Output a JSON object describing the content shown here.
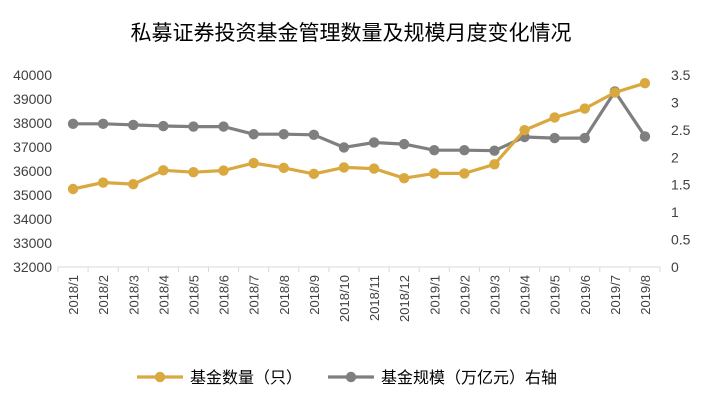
{
  "chart_data": {
    "type": "line",
    "title": "私募证券投资基金管理数量及规模月度变化情况",
    "categories": [
      "2018/1",
      "2018/2",
      "2018/3",
      "2018/4",
      "2018/5",
      "2018/6",
      "2018/7",
      "2018/8",
      "2018/9",
      "2018/10",
      "2018/11",
      "2018/12",
      "2019/1",
      "2019/2",
      "2019/3",
      "2019/4",
      "2019/5",
      "2019/6",
      "2019/7",
      "2019/8"
    ],
    "y_left": {
      "ylim": [
        32000,
        40000
      ],
      "ticks": [
        "32000",
        "33000",
        "34000",
        "35000",
        "36000",
        "37000",
        "38000",
        "39000",
        "40000"
      ]
    },
    "y_right": {
      "ylim": [
        0,
        3.5
      ],
      "ticks": [
        "0",
        "0.5",
        "1",
        "1.5",
        "2",
        "2.5",
        "3",
        "3.5"
      ]
    },
    "series": [
      {
        "name": "基金数量（只）",
        "axis": "left",
        "color": "#D9A83F",
        "values": [
          35250,
          35520,
          35450,
          36030,
          35950,
          36020,
          36330,
          36130,
          35880,
          36150,
          36100,
          35700,
          35900,
          35900,
          36280,
          37700,
          38230,
          38600,
          39270,
          39660
        ]
      },
      {
        "name": "基金规模（万亿元）右轴",
        "axis": "right",
        "color": "#7F7F7F",
        "values": [
          2.61,
          2.61,
          2.59,
          2.57,
          2.56,
          2.56,
          2.42,
          2.42,
          2.41,
          2.18,
          2.27,
          2.24,
          2.13,
          2.13,
          2.12,
          2.37,
          2.35,
          2.35,
          3.2,
          2.38
        ]
      }
    ],
    "grid": false,
    "legend_position": "bottom"
  }
}
